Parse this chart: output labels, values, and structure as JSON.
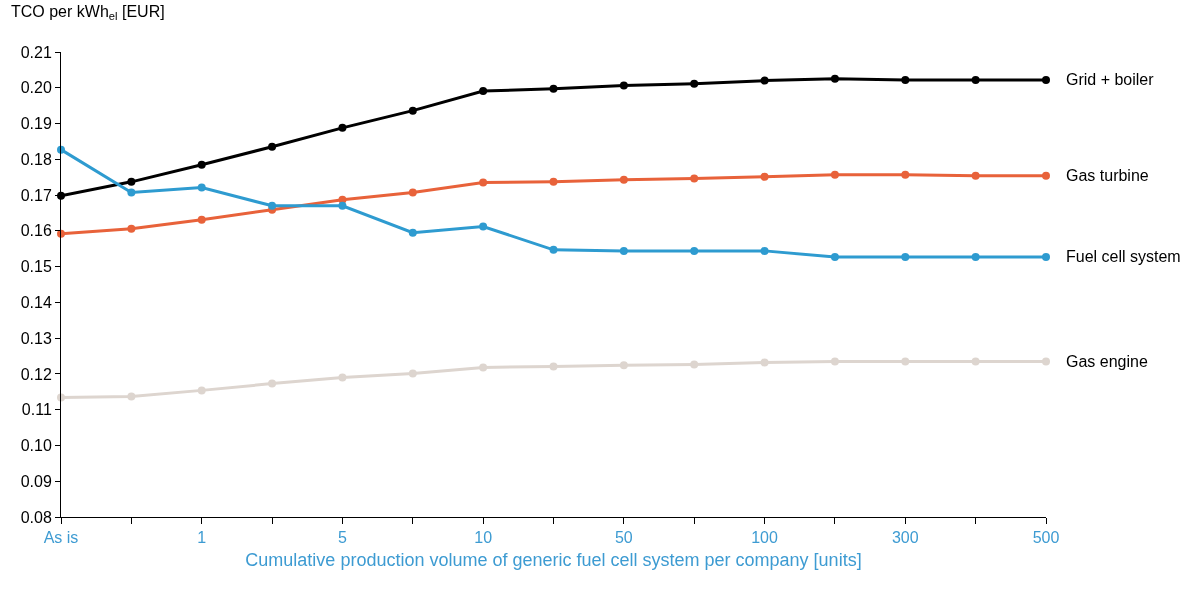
{
  "chart_data": {
    "type": "line",
    "ylabel": "TCO per kWh$_{el}$ [EUR]",
    "xlabel": "Cumulative production volume of generic fuel cell system per company [units]",
    "categories": [
      "As is",
      null,
      "1",
      null,
      "5",
      null,
      "10",
      null,
      "50",
      null,
      "100",
      null,
      "300",
      null,
      "500"
    ],
    "ylim": [
      0.08,
      0.21
    ],
    "yticks": [
      {
        "value": 0.08,
        "label": "0.08"
      },
      {
        "value": 0.09,
        "label": "0.09"
      },
      {
        "value": 0.1,
        "label": "0.10"
      },
      {
        "value": 0.11,
        "label": "0.11"
      },
      {
        "value": 0.12,
        "label": "0.12"
      },
      {
        "value": 0.13,
        "label": "0.13"
      },
      {
        "value": 0.14,
        "label": "0.14"
      },
      {
        "value": 0.15,
        "label": "0.15"
      },
      {
        "value": 0.16,
        "label": "0.16"
      },
      {
        "value": 0.17,
        "label": "0.17"
      },
      {
        "value": 0.18,
        "label": "0.18"
      },
      {
        "value": 0.19,
        "label": "0.19"
      },
      {
        "value": 0.2,
        "label": "0.20"
      },
      {
        "value": 0.21,
        "label": "0.21"
      }
    ],
    "grid": false,
    "legend": false,
    "marker": "circle",
    "line_style": "solid",
    "series": [
      {
        "name": "Grid + boiler",
        "color": "#000000",
        "values": [
          0.1698,
          0.1737,
          0.1785,
          0.1835,
          0.1888,
          0.1936,
          0.1991,
          0.1997,
          0.2006,
          0.2011,
          0.202,
          0.2025,
          0.2022,
          0.2022,
          0.2022
        ]
      },
      {
        "name": "Gas turbine",
        "color": "#e8623a",
        "values": [
          0.1592,
          0.1606,
          0.1631,
          0.1659,
          0.1687,
          0.1707,
          0.1735,
          0.1737,
          0.1743,
          0.1746,
          0.1751,
          0.1757,
          0.1757,
          0.1754,
          0.1754
        ]
      },
      {
        "name": "Fuel cell system",
        "color": "#2e9bd0",
        "values": [
          0.1827,
          0.1707,
          0.1721,
          0.167,
          0.167,
          0.1595,
          0.1612,
          0.1547,
          0.1544,
          0.1544,
          0.1544,
          0.1527,
          0.1527,
          0.1527,
          0.1527
        ]
      },
      {
        "name": "Gas engine",
        "color": "#ddd5cf",
        "values": [
          0.1134,
          0.1137,
          0.1154,
          0.1173,
          0.119,
          0.1201,
          0.1218,
          0.1221,
          0.1224,
          0.1226,
          0.1232,
          0.1235,
          0.1235,
          0.1235,
          0.1235
        ]
      }
    ]
  }
}
